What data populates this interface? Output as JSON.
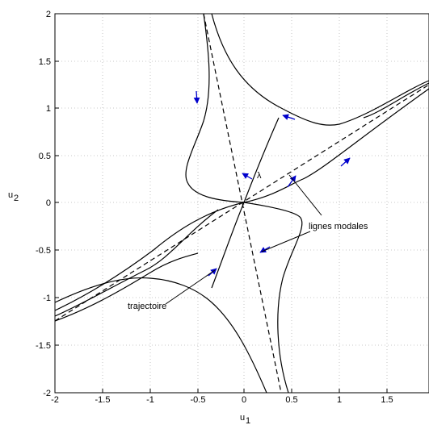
{
  "chart_data": {
    "type": "line",
    "title": "",
    "xlabel": "u1",
    "ylabel": "u2",
    "xlim": [
      -2,
      2
    ],
    "ylim": [
      -2,
      2
    ],
    "grid": true,
    "x_ticks": [
      "-2",
      "-1.5",
      "-1",
      "-0.5",
      "0",
      "0.5",
      "1",
      "1.5"
    ],
    "y_ticks": [
      "2",
      "1.5",
      "1",
      "0.5",
      "0",
      "-0.5",
      "-1",
      "-1.5",
      "-2"
    ],
    "modal_lines": [
      {
        "style": "dashed",
        "slope": 0.5
      },
      {
        "style": "dashed",
        "slope": -4.5
      }
    ],
    "curves": [
      {
        "name": "curve-top-right",
        "points": [
          [
            0.9,
            0.83
          ],
          [
            1.2,
            0.86
          ],
          [
            1.5,
            0.97
          ],
          [
            1.8,
            1.12
          ],
          [
            2.0,
            1.2
          ]
        ]
      },
      {
        "name": "trajectoire",
        "points": [
          [
            -0.33,
            -0.85
          ],
          [
            -0.18,
            -0.4
          ],
          [
            -0.05,
            -0.08
          ],
          [
            0,
            0
          ],
          [
            0.08,
            0.23
          ],
          [
            0.2,
            0.55
          ],
          [
            0.35,
            0.87
          ]
        ]
      }
    ],
    "annotations": [
      {
        "text": "λ",
        "x": 0.22,
        "y": 0.3
      },
      {
        "text": "lignes modales",
        "x": 0.67,
        "y": -0.22
      },
      {
        "text": "trajectoire",
        "x": -1.18,
        "y": -1.03
      }
    ]
  },
  "axis_labels": {
    "x_main": "u",
    "x_sub": "1",
    "y_main": "u",
    "y_sub": "2"
  }
}
